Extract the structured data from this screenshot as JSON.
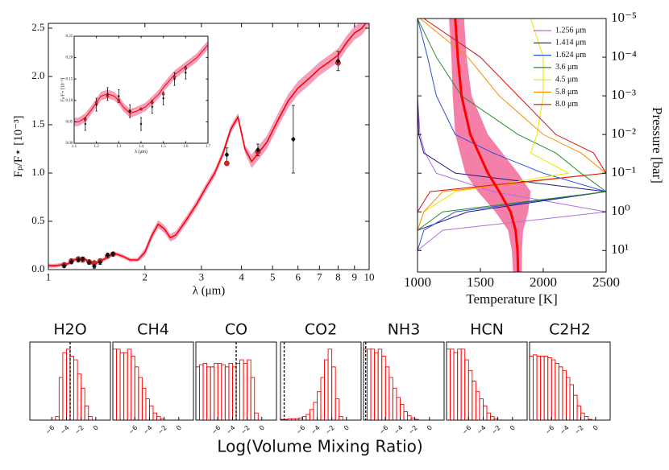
{
  "chart_data": [
    {
      "type": "line",
      "xlog": true,
      "ylabel": "Fₚ/F⋆ [10⁻³]",
      "xlabel": "λ (μm)",
      "xlim": [
        1,
        10
      ],
      "ylim": [
        0,
        2.55
      ],
      "xticks": [
        1,
        2,
        3,
        4,
        5,
        6,
        7,
        8,
        9,
        10
      ],
      "yticks": [
        {
          "value": 0,
          "label": "0.0"
        },
        0.5,
        {
          "value": 1,
          "label": "1.0"
        },
        1.5,
        {
          "value": 2,
          "label": "2.0"
        },
        2.5
      ],
      "model": {
        "color": "#ff0000",
        "band_color": "#f4a0bd",
        "x": [
          1.0,
          1.05,
          1.1,
          1.15,
          1.2,
          1.25,
          1.3,
          1.35,
          1.4,
          1.45,
          1.5,
          1.55,
          1.6,
          1.7,
          1.8,
          1.9,
          2.0,
          2.1,
          2.2,
          2.3,
          2.4,
          2.5,
          2.7,
          2.9,
          3.1,
          3.3,
          3.5,
          3.7,
          3.9,
          4.1,
          4.3,
          4.5,
          4.8,
          5.2,
          5.6,
          6.0,
          6.5,
          7.0,
          7.5,
          8.0,
          8.5,
          9.0,
          9.5,
          10.0
        ],
        "values": [
          0.04,
          0.04,
          0.05,
          0.06,
          0.1,
          0.11,
          0.11,
          0.07,
          0.06,
          0.09,
          0.11,
          0.14,
          0.17,
          0.14,
          0.1,
          0.1,
          0.18,
          0.35,
          0.47,
          0.42,
          0.33,
          0.36,
          0.52,
          0.68,
          0.85,
          1.0,
          1.2,
          1.45,
          1.58,
          1.25,
          1.12,
          1.2,
          1.32,
          1.55,
          1.75,
          1.88,
          1.98,
          2.08,
          2.15,
          2.22,
          2.35,
          2.45,
          2.5,
          2.6
        ],
        "band_low": [
          0.02,
          0.02,
          0.03,
          0.04,
          0.08,
          0.09,
          0.09,
          0.05,
          0.04,
          0.07,
          0.09,
          0.12,
          0.15,
          0.12,
          0.08,
          0.08,
          0.14,
          0.31,
          0.43,
          0.38,
          0.29,
          0.32,
          0.48,
          0.64,
          0.81,
          0.96,
          1.16,
          1.41,
          1.54,
          1.21,
          1.05,
          1.13,
          1.25,
          1.48,
          1.68,
          1.81,
          1.91,
          2.01,
          2.08,
          2.15,
          2.28,
          2.38,
          2.43,
          2.53
        ],
        "band_high": [
          0.06,
          0.06,
          0.07,
          0.08,
          0.12,
          0.13,
          0.13,
          0.09,
          0.08,
          0.11,
          0.13,
          0.16,
          0.19,
          0.16,
          0.12,
          0.12,
          0.22,
          0.39,
          0.51,
          0.46,
          0.37,
          0.4,
          0.56,
          0.72,
          0.89,
          1.04,
          1.24,
          1.49,
          1.62,
          1.29,
          1.19,
          1.27,
          1.39,
          1.62,
          1.82,
          1.95,
          2.05,
          2.15,
          2.22,
          2.29,
          2.42,
          2.52,
          2.57,
          2.67
        ]
      },
      "observed": {
        "color": "#111111",
        "x": [
          1.12,
          1.18,
          1.24,
          1.28,
          1.34,
          1.39,
          1.45,
          1.53,
          1.59,
          3.6,
          4.5,
          5.8,
          8.0
        ],
        "values": [
          0.04,
          0.08,
          0.1,
          0.11,
          0.075,
          0.035,
          0.075,
          0.15,
          0.16,
          1.19,
          1.24,
          1.35,
          2.16
        ],
        "errors": [
          0.02,
          0.02,
          0.02,
          0.02,
          0.02,
          0.02,
          0.02,
          0.02,
          0.02,
          0.07,
          0.06,
          0.35,
          0.1
        ]
      },
      "binned": {
        "color": "#d62728",
        "x": [
          1.12,
          1.18,
          1.24,
          1.28,
          1.34,
          1.39,
          1.45,
          1.53,
          1.59,
          3.6,
          4.5,
          8.0
        ],
        "values": [
          0.05,
          0.09,
          0.11,
          0.1,
          0.08,
          0.07,
          0.09,
          0.14,
          0.16,
          1.1,
          1.22,
          2.14
        ]
      }
    },
    {
      "type": "line",
      "xlog": false,
      "ylabel": "Fₚ/F⋆ [10⁻³]",
      "xlabel": "λ (μm)",
      "xlim": [
        1.1,
        1.7
      ],
      "ylim": [
        0,
        0.25
      ],
      "xticks": [
        1.1,
        1.2,
        1.3,
        1.4,
        1.5,
        1.6,
        1.7
      ],
      "yticks": [
        {
          "value": 0,
          "label": "0.00"
        },
        0.05,
        {
          "value": 0.1,
          "label": "0.10"
        },
        0.15,
        {
          "value": 0.2,
          "label": "0.20"
        },
        0.25
      ],
      "model": {
        "color": "#ff0000",
        "band_color": "#f4a0bd",
        "x": [
          1.1,
          1.12,
          1.15,
          1.18,
          1.2,
          1.22,
          1.25,
          1.28,
          1.3,
          1.32,
          1.35,
          1.38,
          1.4,
          1.42,
          1.45,
          1.48,
          1.5,
          1.55,
          1.6,
          1.65,
          1.7
        ],
        "values": [
          0.05,
          0.05,
          0.06,
          0.08,
          0.095,
          0.11,
          0.115,
          0.11,
          0.1,
          0.085,
          0.07,
          0.075,
          0.08,
          0.085,
          0.1,
          0.115,
          0.13,
          0.16,
          0.18,
          0.2,
          0.23
        ],
        "band_low": [
          0.04,
          0.04,
          0.05,
          0.07,
          0.085,
          0.1,
          0.105,
          0.1,
          0.09,
          0.075,
          0.06,
          0.065,
          0.07,
          0.075,
          0.09,
          0.105,
          0.12,
          0.15,
          0.17,
          0.19,
          0.22
        ],
        "band_high": [
          0.06,
          0.06,
          0.07,
          0.09,
          0.105,
          0.12,
          0.125,
          0.12,
          0.11,
          0.095,
          0.08,
          0.085,
          0.09,
          0.095,
          0.11,
          0.125,
          0.14,
          0.17,
          0.19,
          0.21,
          0.24
        ]
      },
      "observed": {
        "color": "#111111",
        "x": [
          1.15,
          1.2,
          1.25,
          1.3,
          1.35,
          1.4,
          1.45,
          1.5,
          1.55,
          1.6
        ],
        "values": [
          0.045,
          0.09,
          0.115,
          0.11,
          0.075,
          0.045,
          0.085,
          0.105,
          0.15,
          0.165
        ],
        "errors": [
          0.015,
          0.015,
          0.015,
          0.015,
          0.015,
          0.015,
          0.015,
          0.015,
          0.015,
          0.015
        ]
      },
      "binned": {
        "color": "#d62728",
        "x": [
          1.15,
          1.2,
          1.25,
          1.3,
          1.35,
          1.4,
          1.45,
          1.5,
          1.55,
          1.6
        ],
        "values": [
          0.055,
          0.095,
          0.11,
          0.1,
          0.075,
          0.08,
          0.095,
          0.115,
          0.155,
          0.175
        ]
      }
    },
    {
      "type": "profile",
      "xlabel": "Temperature [K]",
      "ylabel": "Pressure [bar]",
      "ylog": true,
      "xlim": [
        1000,
        2500
      ],
      "ylim": [
        1e-05,
        36
      ],
      "xticks": [
        1000,
        1500,
        2000,
        2500
      ],
      "yticks": [
        {
          "value": 1e-05,
          "label": "10⁻⁵"
        },
        {
          "value": 0.0001,
          "label": "10⁻⁴"
        },
        {
          "value": 0.001,
          "label": "10⁻³"
        },
        {
          "value": 0.01,
          "label": "10⁻²"
        },
        {
          "value": 0.1,
          "label": "10⁻¹"
        },
        {
          "value": 1,
          "label": "10⁰"
        },
        {
          "value": 10,
          "label": "10¹"
        }
      ],
      "legend": "upper right",
      "pressure": [
        1e-05,
        0.0001,
        0.001,
        0.01,
        0.03,
        0.1,
        0.3,
        1,
        3,
        10,
        36
      ],
      "series": [
        {
          "name": "1.256 μm",
          "color": "#b46ee0",
          "values": [
            1000,
            1000,
            1000,
            1020,
            1060,
            1150,
            1600,
            2500,
            1200,
            1000,
            1000
          ]
        },
        {
          "name": "1.414 μm",
          "color": "#1a1a8c",
          "values": [
            1000,
            1000,
            1000,
            1010,
            1050,
            1300,
            2500,
            1400,
            1000,
            1000,
            1000
          ]
        },
        {
          "name": "1.624 μm",
          "color": "#2a4fd8",
          "values": [
            1000,
            1080,
            1150,
            1300,
            1600,
            2000,
            2500,
            1300,
            1050,
            1000,
            1000
          ]
        },
        {
          "name": "3.6 μm",
          "color": "#2e8b2e",
          "values": [
            1000,
            1150,
            1350,
            1800,
            2100,
            2300,
            2500,
            1200,
            1000,
            1000,
            1000
          ]
        },
        {
          "name": "4.5 μm",
          "color": "#e6e600",
          "values": [
            1900,
            2000,
            2000,
            1950,
            1900,
            2200,
            1300,
            1050,
            1000,
            1000,
            1000
          ]
        },
        {
          "name": "5.8 μm",
          "color": "#ff8c00",
          "values": [
            1020,
            1400,
            1650,
            2000,
            2300,
            2500,
            1200,
            1050,
            1000,
            1000,
            1000
          ]
        },
        {
          "name": "8.0 μm",
          "color": "#dd1111",
          "values": [
            1050,
            1500,
            1800,
            2100,
            2400,
            2500,
            1100,
            1000,
            1000,
            1000,
            1000
          ]
        }
      ],
      "profile": {
        "color": "#ff0000",
        "band_color": "#f47fa8",
        "pressure": [
          1e-05,
          0.0001,
          0.001,
          0.01,
          0.1,
          0.3,
          1,
          3,
          10,
          36
        ],
        "values": [
          1300,
          1320,
          1350,
          1420,
          1560,
          1650,
          1740,
          1780,
          1795,
          1800
        ],
        "band_low": [
          1250,
          1270,
          1280,
          1300,
          1380,
          1480,
          1620,
          1720,
          1750,
          1760
        ],
        "band_high": [
          1370,
          1390,
          1430,
          1560,
          1800,
          1900,
          1880,
          1840,
          1830,
          1830
        ]
      }
    },
    {
      "type": "histogram",
      "xlabel": "Log(Volume Mixing Ratio)",
      "xlim": [
        -9,
        2
      ],
      "ylim": [
        0,
        1.1
      ],
      "color": "#ff0000",
      "xticks": [
        {
          "value": -6,
          "label": "−6"
        },
        {
          "value": -4,
          "label": "−4"
        },
        {
          "value": -2,
          "label": "−2"
        },
        0
      ],
      "bins": [
        -9,
        -8.5,
        -8,
        -7.5,
        -7,
        -6.5,
        -6,
        -5.5,
        -5,
        -4.5,
        -4,
        -3.5,
        -3,
        -2.5,
        -2,
        -1.5,
        -1,
        -0.5,
        0
      ],
      "panels": [
        {
          "title": "H2O",
          "truth": -3.5,
          "values": [
            0,
            0,
            0,
            0,
            0,
            0,
            0,
            0.05,
            0.6,
            0.95,
            1.0,
            0.9,
            0.85,
            0.65,
            0.45,
            0.2,
            0.05,
            0
          ]
        },
        {
          "title": "CH4",
          "values": [
            1.0,
            1.0,
            0.95,
            0.95,
            1.0,
            0.9,
            0.75,
            0.6,
            0.45,
            0.3,
            0.2,
            0.1,
            0.05,
            0.02,
            0,
            0,
            0,
            0
          ]
        },
        {
          "title": "CO",
          "truth": -3.5,
          "values": [
            0.75,
            0.78,
            0.8,
            0.75,
            0.75,
            0.8,
            0.8,
            0.78,
            0.75,
            0.8,
            0.75,
            0.8,
            0.85,
            0.8,
            0.85,
            0.6,
            0.1,
            0
          ]
        },
        {
          "title": "CO2",
          "truth": -8.5,
          "values": [
            0.01,
            0.01,
            0.02,
            0.02,
            0.02,
            0.03,
            0.05,
            0.08,
            0.15,
            0.25,
            0.4,
            0.6,
            0.85,
            1.0,
            0.75,
            0.3,
            0.05,
            0
          ]
        },
        {
          "title": "NH3",
          "truth": -8.7,
          "values": [
            1.0,
            1.0,
            1.0,
            0.95,
            1.0,
            0.9,
            0.75,
            0.6,
            0.45,
            0.32,
            0.22,
            0.12,
            0.06,
            0.03,
            0.01,
            0,
            0,
            0
          ]
        },
        {
          "title": "HCN",
          "values": [
            1.0,
            1.0,
            0.95,
            1.0,
            1.0,
            0.85,
            0.7,
            0.55,
            0.4,
            0.3,
            0.2,
            0.1,
            0.05,
            0.02,
            0,
            0,
            0,
            0
          ]
        },
        {
          "title": "C2H2",
          "values": [
            0.9,
            0.92,
            0.9,
            0.9,
            0.9,
            0.88,
            0.85,
            0.8,
            0.75,
            0.7,
            0.6,
            0.5,
            0.35,
            0.2,
            0.1,
            0.05,
            0.01,
            0
          ]
        }
      ]
    }
  ]
}
